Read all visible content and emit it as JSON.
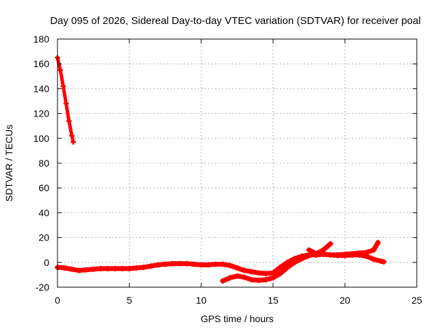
{
  "chart_data": {
    "type": "line",
    "title": "Day 095 of 2026, Sidereal Day-to-day VTEC variation (SDTVAR) for receiver poal",
    "xlabel": "GPS time / hours",
    "ylabel": "SDTVAR / TECUs",
    "xlim": [
      0,
      25
    ],
    "ylim": [
      -20,
      180
    ],
    "xticks": [
      0,
      5,
      10,
      15,
      20,
      25
    ],
    "yticks": [
      -20,
      0,
      20,
      40,
      60,
      80,
      100,
      120,
      140,
      160,
      180
    ],
    "grid": true,
    "color": "#ff0000",
    "series": [
      {
        "x": [
          0.0,
          0.2,
          0.4,
          0.6,
          0.8,
          1.0,
          1.1
        ],
        "y": [
          165,
          155,
          142,
          128,
          114,
          102,
          97
        ]
      },
      {
        "x": [
          0.0,
          0.5,
          1.0,
          1.5,
          2.0,
          2.5,
          3.0,
          3.5,
          4.0,
          4.5,
          5.0,
          5.5,
          6.0,
          6.5,
          7.0,
          7.5,
          8.0,
          8.5,
          9.0,
          9.5,
          10.0,
          10.5,
          11.0,
          11.5,
          12.0,
          12.5,
          13.0,
          13.5,
          14.0,
          14.5,
          15.0,
          15.5,
          16.0,
          16.5,
          17.0,
          17.5,
          18.0,
          18.5,
          19.0,
          19.5,
          20.0,
          20.5,
          21.0,
          21.5,
          22.0,
          22.5,
          22.7
        ],
        "y": [
          -4,
          -4.5,
          -5.5,
          -6.5,
          -6,
          -5.5,
          -5,
          -5,
          -5,
          -5,
          -5,
          -4.5,
          -4,
          -3,
          -2,
          -1.5,
          -1,
          -1,
          -1,
          -1.5,
          -2,
          -2,
          -1.5,
          -1.5,
          -2.5,
          -4.5,
          -6.5,
          -7.5,
          -8.5,
          -9,
          -8.5,
          -4,
          0,
          3,
          5,
          6,
          6,
          6.5,
          6,
          5.5,
          5.5,
          6,
          6,
          5,
          2.5,
          1,
          0.5
        ]
      },
      {
        "x": [
          11.5,
          12.0,
          12.5,
          13.0,
          13.5,
          14.0,
          14.5,
          15.0,
          15.5,
          16.0,
          16.5,
          17.0,
          17.5,
          18.0,
          18.5,
          19.0,
          19.5,
          20.0,
          20.5,
          21.0,
          21.5,
          22.0,
          22.3
        ],
        "y": [
          -15,
          -12.5,
          -11,
          -12,
          -14,
          -14.5,
          -14,
          -12.5,
          -9,
          -4,
          0,
          3,
          5.5,
          7,
          6.5,
          6,
          6,
          6.5,
          7,
          7.5,
          8,
          10,
          16
        ]
      },
      {
        "x": [
          17.5,
          18.0,
          18.5,
          19.0
        ],
        "y": [
          10,
          7,
          10,
          15
        ]
      }
    ]
  }
}
